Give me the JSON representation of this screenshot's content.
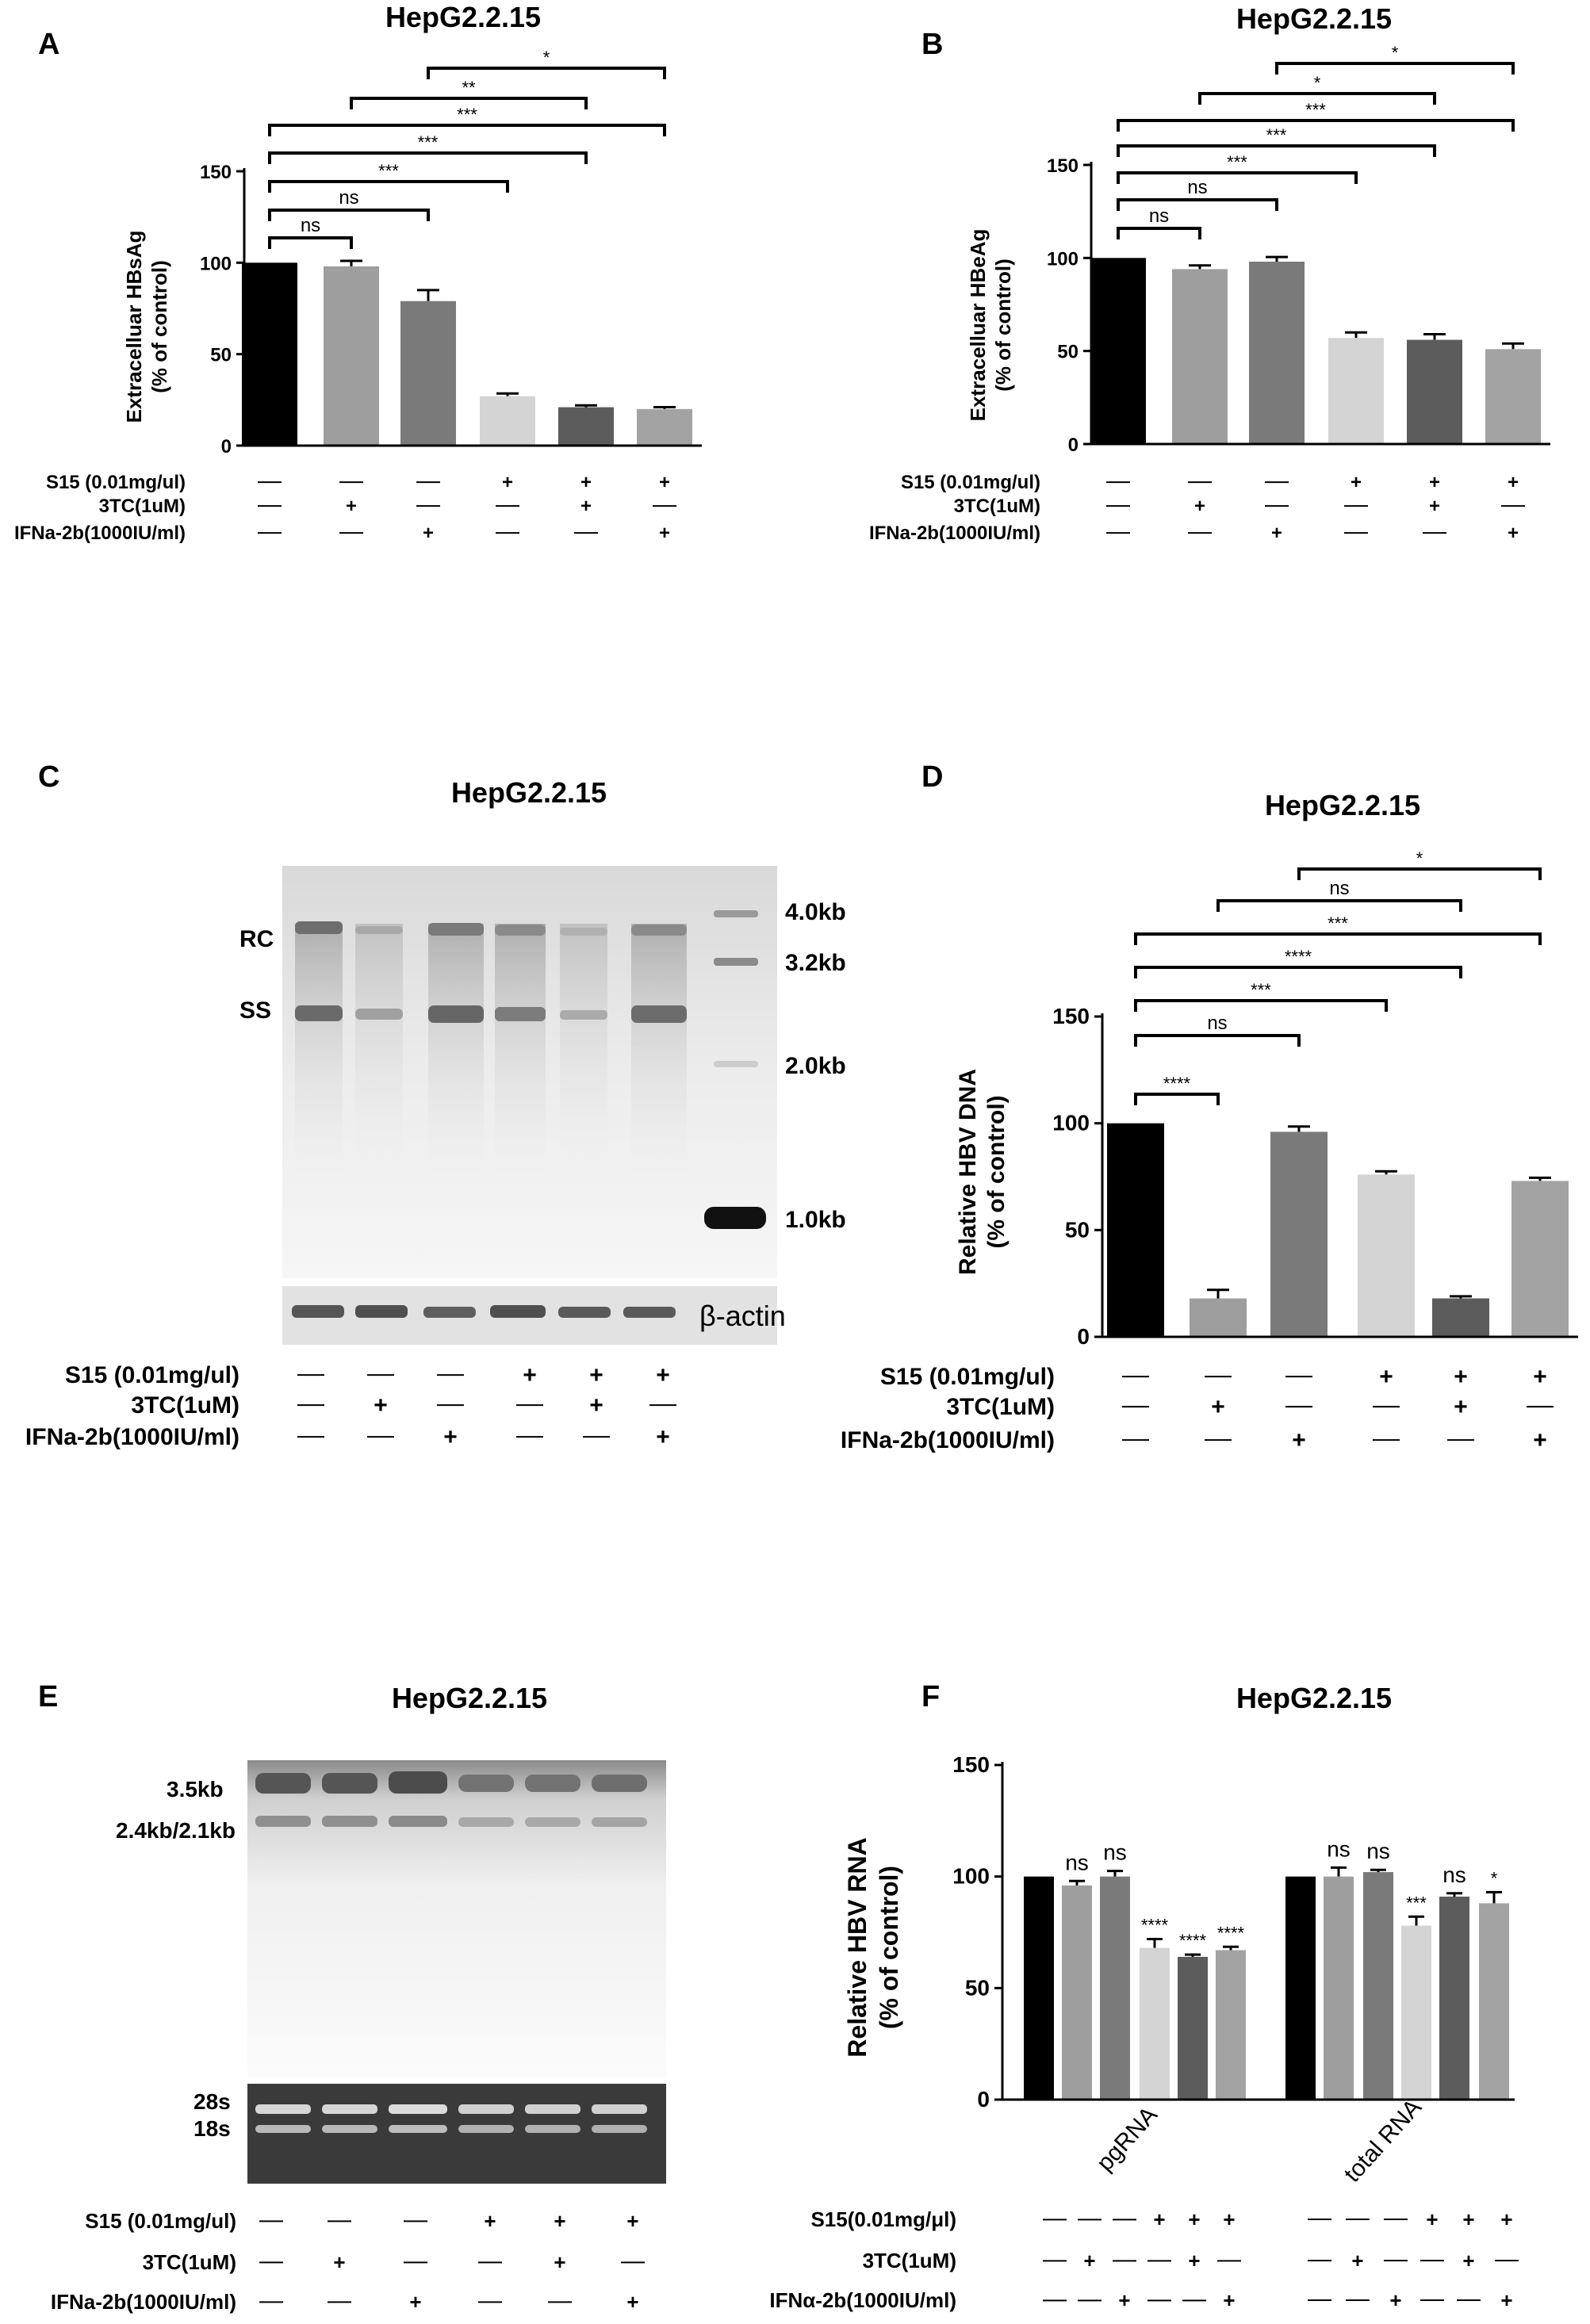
{
  "conditions": {
    "rows": [
      "S15 (0.01mg/ul)",
      "3TC(1uM)",
      "IFNa-2b(1000IU/ml)"
    ],
    "s15": [
      "—",
      "—",
      "—",
      "+",
      "+",
      "+"
    ],
    "tc3": [
      "—",
      "+",
      "—",
      "—",
      "+",
      "—"
    ],
    "ifn": [
      "—",
      "—",
      "+",
      "—",
      "—",
      "+"
    ]
  },
  "conditions_f": {
    "rows": [
      "S15(0.01mg/μl)",
      "3TC(1uM)",
      "IFNα-2b(1000IU/ml)"
    ]
  },
  "panels": {
    "A": {
      "letter": "A",
      "title": "HepG2.2.15",
      "ylabel1": "Extracelluar HBsAg",
      "ylabel2": "(% of control)",
      "ticks": [
        "0",
        "50",
        "100",
        "150"
      ],
      "sig": [
        "ns",
        "ns",
        "***",
        "***",
        "***",
        "**",
        "*"
      ]
    },
    "B": {
      "letter": "B",
      "title": "HepG2.2.15",
      "ylabel1": "Extracelluar HBeAg",
      "ylabel2": "(% of control)",
      "ticks": [
        "0",
        "50",
        "100",
        "150"
      ],
      "sig": [
        "ns",
        "ns",
        "***",
        "***",
        "***",
        "*",
        "*"
      ]
    },
    "C": {
      "letter": "C",
      "title": "HepG2.2.15",
      "band_rc": "RC",
      "band_ss": "SS",
      "markers": [
        "4.0kb",
        "3.2kb",
        "2.0kb",
        "1.0kb"
      ],
      "loading": "β-actin"
    },
    "D": {
      "letter": "D",
      "title": "HepG2.2.15",
      "ylabel1": "Relative HBV DNA",
      "ylabel2": "(% of control)",
      "ticks": [
        "0",
        "50",
        "100",
        "150"
      ],
      "sig": [
        "****",
        "ns",
        "***",
        "****",
        "***",
        "ns",
        "*"
      ]
    },
    "E": {
      "letter": "E",
      "title": "HepG2.2.15",
      "band1": "3.5kb",
      "band2": "2.4kb/2.1kb",
      "rrna1": "28s",
      "rrna2": "18s"
    },
    "F": {
      "letter": "F",
      "title": "HepG2.2.15",
      "ylabel1": "Relative HBV RNA",
      "ylabel2": "(% of control)",
      "ticks": [
        "0",
        "50",
        "100",
        "150"
      ],
      "group_labels": [
        "pgRNA",
        "total RNA"
      ],
      "sig_pg": [
        "ns",
        "ns",
        "****",
        "****",
        "****"
      ],
      "sig_total": [
        "ns",
        "ns",
        "***",
        "ns",
        "*"
      ]
    }
  },
  "chart_data": [
    {
      "panel": "A",
      "type": "bar",
      "title": "HepG2.2.15",
      "ylabel": "Extracelluar HBsAg (% of control)",
      "ylim": [
        0,
        150
      ],
      "categories": [
        "1",
        "2",
        "3",
        "4",
        "5",
        "6"
      ],
      "values": [
        100,
        98,
        79,
        27,
        21,
        20
      ],
      "errors": [
        0,
        3,
        6,
        1.5,
        1,
        1
      ],
      "colors": [
        "#000000",
        "#9e9e9e",
        "#7a7a7a",
        "#d4d4d4",
        "#5c5c5c",
        "#a3a3a3"
      ]
    },
    {
      "panel": "B",
      "type": "bar",
      "title": "HepG2.2.15",
      "ylabel": "Extracelluar HBeAg (% of control)",
      "ylim": [
        0,
        150
      ],
      "categories": [
        "1",
        "2",
        "3",
        "4",
        "5",
        "6"
      ],
      "values": [
        100,
        94,
        98,
        57,
        56,
        51
      ],
      "errors": [
        0,
        2,
        2.5,
        3,
        3,
        3
      ],
      "colors": [
        "#000000",
        "#9e9e9e",
        "#7a7a7a",
        "#d4d4d4",
        "#5c5c5c",
        "#a3a3a3"
      ]
    },
    {
      "panel": "D",
      "type": "bar",
      "title": "HepG2.2.15",
      "ylabel": "Relative HBV DNA (% of control)",
      "ylim": [
        0,
        150
      ],
      "categories": [
        "1",
        "2",
        "3",
        "4",
        "5",
        "6"
      ],
      "values": [
        100,
        18,
        96,
        76,
        18,
        73
      ],
      "errors": [
        0,
        4,
        2.5,
        1.5,
        1,
        1.5
      ],
      "colors": [
        "#000000",
        "#9e9e9e",
        "#7a7a7a",
        "#d4d4d4",
        "#5c5c5c",
        "#a3a3a3"
      ]
    },
    {
      "panel": "F",
      "type": "bar",
      "title": "HepG2.2.15",
      "ylabel": "Relative HBV RNA (% of control)",
      "ylim": [
        0,
        150
      ],
      "categories": [
        "pgRNA",
        "total RNA"
      ],
      "series": [
        {
          "values": [
            100,
            100
          ],
          "errors": [
            0,
            0
          ]
        },
        {
          "values": [
            96,
            100
          ],
          "errors": [
            2,
            4
          ]
        },
        {
          "values": [
            100,
            102
          ],
          "errors": [
            2.5,
            1
          ]
        },
        {
          "values": [
            68,
            78
          ],
          "errors": [
            4,
            4
          ]
        },
        {
          "values": [
            64,
            91
          ],
          "errors": [
            1,
            1.5
          ]
        },
        {
          "values": [
            67,
            88
          ],
          "errors": [
            1.5,
            5
          ]
        }
      ],
      "colors": [
        "#000000",
        "#9e9e9e",
        "#7a7a7a",
        "#d4d4d4",
        "#5c5c5c",
        "#a3a3a3"
      ]
    }
  ]
}
